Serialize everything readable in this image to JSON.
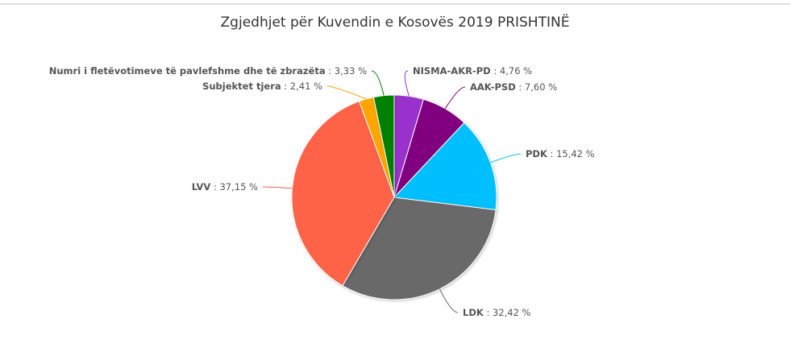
{
  "chart_data": {
    "type": "pie",
    "title": "Zgjedhjet për Kuvendin e Kosovës 2019 PRISHTINË",
    "slices": [
      {
        "name": "NISMA-AKR-PD",
        "value": 4.76,
        "label": "4,76 %",
        "color": "#9932cc"
      },
      {
        "name": "AAK-PSD",
        "value": 7.6,
        "label": "7,60 %",
        "color": "#800080"
      },
      {
        "name": "PDK",
        "value": 15.42,
        "label": "15,42 %",
        "color": "#00bfff"
      },
      {
        "name": "LDK",
        "value": 32.42,
        "label": "32,42 %",
        "color": "#696969"
      },
      {
        "name": "LVV",
        "value": 37.15,
        "label": "37,15 %",
        "color": "#ff6347"
      },
      {
        "name": "Subjektet tjera",
        "value": 2.41,
        "label": "2,41 %",
        "color": "#ffa500"
      },
      {
        "name": "Numri i fletëvotimeve të pavlefshme dhe të zbrazëta",
        "value": 3.33,
        "label": "3,33 %",
        "color": "#008000"
      }
    ],
    "legend": "none"
  }
}
